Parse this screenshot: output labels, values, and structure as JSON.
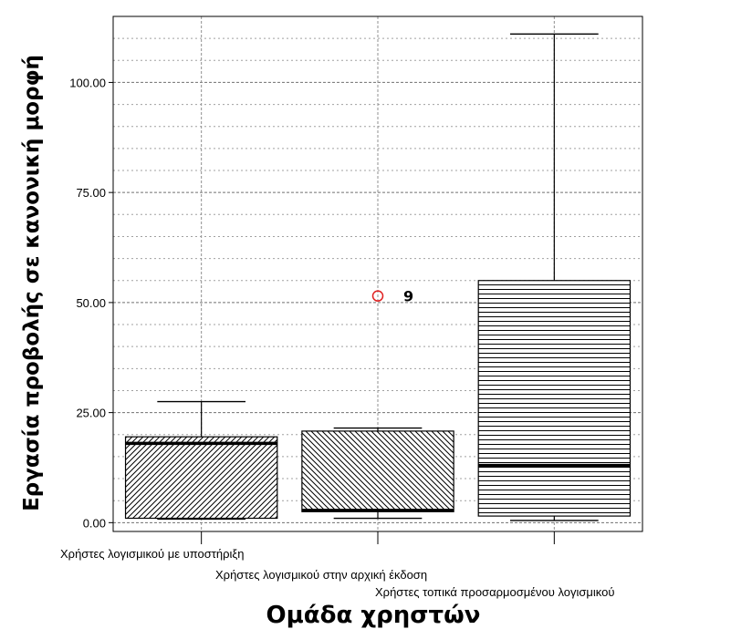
{
  "chart_data": {
    "type": "boxplot",
    "xlabel": "Ομάδα χρηστών",
    "ylabel": "Εργασία προβολής σε κανονική μορφή",
    "ylim": [
      -2,
      115
    ],
    "yticks": [
      0,
      25,
      50,
      75,
      100
    ],
    "ytick_labels": [
      "0.00",
      "25.00",
      "50.00",
      "75.00",
      "100.00"
    ],
    "grid": true,
    "categories": [
      "Χρήστες λογισμικού με υποστήριξη",
      "Χρήστες λογισμικού στην αρχική έκδοση",
      "Χρήστες τοπικά προσαρμοσμένου λογισμικού"
    ],
    "boxes": [
      {
        "whisker_low": 0.8,
        "q1": 1.0,
        "median": 18.0,
        "q3": 19.5,
        "whisker_high": 27.5,
        "pattern": "diagonal-up"
      },
      {
        "whisker_low": 1.0,
        "q1": 2.5,
        "median": 2.8,
        "q3": 20.8,
        "whisker_high": 21.5,
        "pattern": "diagonal-down",
        "outliers": [
          {
            "value": 51.5,
            "label": "9"
          }
        ]
      },
      {
        "whisker_low": 0.5,
        "q1": 1.5,
        "median": 13.0,
        "q3": 55.0,
        "whisker_high": 111.0,
        "pattern": "horizontal"
      }
    ],
    "colors": {
      "outlier": "#e02020",
      "ink": "#000000",
      "grid": "#909090"
    }
  }
}
